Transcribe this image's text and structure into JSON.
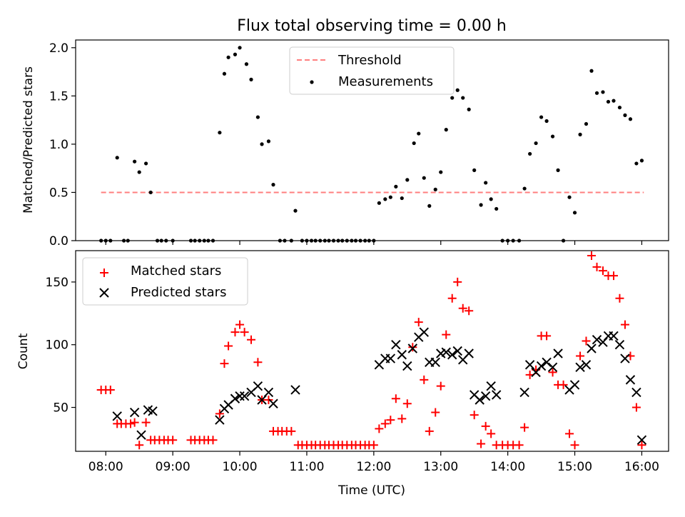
{
  "figure": {
    "title": "Flux total observing time = 0.00 h",
    "xlabel": "Time (UTC)",
    "x_ticks": [
      "08:00",
      "09:00",
      "10:00",
      "11:00",
      "12:00",
      "13:00",
      "14:00",
      "15:00",
      "16:00"
    ],
    "x_tick_hours": [
      8,
      9,
      10,
      11,
      12,
      13,
      14,
      15,
      16
    ],
    "xlim_hours": [
      7.55,
      16.4
    ]
  },
  "chart_data": [
    {
      "type": "scatter",
      "panel": "top",
      "ylabel": "Matched/Predicted stars",
      "ylim": [
        0,
        2.08
      ],
      "y_ticks": [
        0.0,
        0.5,
        1.0,
        1.5,
        2.0
      ],
      "y_tick_labels": [
        "0.0",
        "0.5",
        "1.0",
        "1.5",
        "2.0"
      ],
      "legend_position": "top-center",
      "threshold": {
        "name": "Threshold",
        "value": 0.5,
        "x_range": [
          7.93,
          16.03
        ],
        "color": "#ff7f7f"
      },
      "measurements": {
        "name": "Measurements",
        "color": "#000000",
        "x": [
          7.93,
          8.0,
          8.07,
          8.17,
          8.27,
          8.33,
          8.43,
          8.5,
          8.6,
          8.67,
          8.77,
          8.83,
          8.9,
          9.0,
          9.27,
          9.33,
          9.4,
          9.47,
          9.53,
          9.6,
          9.7,
          9.77,
          9.83,
          9.93,
          10.0,
          10.1,
          10.17,
          10.27,
          10.33,
          10.43,
          10.5,
          10.6,
          10.67,
          10.77,
          10.83,
          10.93,
          11.0,
          11.07,
          11.13,
          11.2,
          11.27,
          11.33,
          11.4,
          11.47,
          11.53,
          11.6,
          11.67,
          11.73,
          11.8,
          11.87,
          11.93,
          12.0,
          12.08,
          12.17,
          12.25,
          12.33,
          12.42,
          12.5,
          12.6,
          12.67,
          12.75,
          12.83,
          12.92,
          13.0,
          13.08,
          13.17,
          13.25,
          13.33,
          13.42,
          13.5,
          13.6,
          13.67,
          13.75,
          13.83,
          13.92,
          14.0,
          14.08,
          14.17,
          14.25,
          14.33,
          14.42,
          14.5,
          14.58,
          14.67,
          14.75,
          14.83,
          14.92,
          15.0,
          15.08,
          15.17,
          15.25,
          15.33,
          15.42,
          15.5,
          15.58,
          15.67,
          15.75,
          15.83,
          15.92,
          16.0
        ],
        "y": [
          0.0,
          0.0,
          0.0,
          0.86,
          0.0,
          0.0,
          0.82,
          0.71,
          0.8,
          0.5,
          0.0,
          0.0,
          0.0,
          0.0,
          0.0,
          0.0,
          0.0,
          0.0,
          0.0,
          0.0,
          1.12,
          1.73,
          1.9,
          1.93,
          2.0,
          1.83,
          1.67,
          1.28,
          1.0,
          1.03,
          0.58,
          0.0,
          0.0,
          0.0,
          0.31,
          0.0,
          0.0,
          0.0,
          0.0,
          0.0,
          0.0,
          0.0,
          0.0,
          0.0,
          0.0,
          0.0,
          0.0,
          0.0,
          0.0,
          0.0,
          0.0,
          0.0,
          0.39,
          0.43,
          0.45,
          0.56,
          0.44,
          0.63,
          1.01,
          1.11,
          0.65,
          0.36,
          0.53,
          0.71,
          1.15,
          1.48,
          1.56,
          1.48,
          1.36,
          0.73,
          0.37,
          0.6,
          0.43,
          0.33,
          0.0,
          0.0,
          0.0,
          0.0,
          0.54,
          0.9,
          1.01,
          1.28,
          1.24,
          1.08,
          0.73,
          0.0,
          0.45,
          0.29,
          1.1,
          1.21,
          1.76,
          1.53,
          1.54,
          1.44,
          1.45,
          1.38,
          1.3,
          1.26,
          0.8,
          0.83
        ]
      }
    },
    {
      "type": "scatter",
      "panel": "bottom",
      "ylabel": "Count",
      "ylim": [
        15,
        175
      ],
      "y_ticks": [
        50,
        100,
        150
      ],
      "y_tick_labels": [
        "50",
        "100",
        "150"
      ],
      "legend_position": "top-left",
      "matched": {
        "name": "Matched stars",
        "marker": "+",
        "color": "#ff0000",
        "x": [
          7.93,
          8.0,
          8.07,
          8.17,
          8.23,
          8.3,
          8.37,
          8.43,
          8.5,
          8.6,
          8.67,
          8.73,
          8.8,
          8.87,
          8.93,
          9.0,
          9.27,
          9.33,
          9.4,
          9.47,
          9.53,
          9.6,
          9.7,
          9.77,
          9.83,
          9.93,
          10.0,
          10.07,
          10.17,
          10.27,
          10.33,
          10.43,
          10.5,
          10.57,
          10.63,
          10.7,
          10.77,
          10.87,
          10.93,
          11.0,
          11.07,
          11.13,
          11.2,
          11.27,
          11.33,
          11.4,
          11.47,
          11.53,
          11.6,
          11.67,
          11.73,
          11.8,
          11.87,
          11.93,
          12.0,
          12.08,
          12.17,
          12.25,
          12.33,
          12.42,
          12.5,
          12.58,
          12.67,
          12.75,
          12.83,
          12.92,
          13.0,
          13.08,
          13.17,
          13.25,
          13.33,
          13.42,
          13.5,
          13.6,
          13.67,
          13.75,
          13.83,
          13.92,
          14.0,
          14.08,
          14.17,
          14.25,
          14.33,
          14.42,
          14.5,
          14.58,
          14.67,
          14.75,
          14.83,
          14.92,
          15.0,
          15.08,
          15.17,
          15.25,
          15.33,
          15.42,
          15.5,
          15.58,
          15.67,
          15.75,
          15.83,
          15.92,
          16.0
        ],
        "y": [
          64,
          64,
          64,
          37,
          37,
          37,
          37,
          38,
          20,
          38,
          24,
          24,
          24,
          24,
          24,
          24,
          24,
          24,
          24,
          24,
          24,
          24,
          45,
          85,
          99,
          110,
          116,
          110,
          104,
          86,
          56,
          56,
          31,
          31,
          31,
          31,
          31,
          20,
          20,
          20,
          20,
          20,
          20,
          20,
          20,
          20,
          20,
          20,
          20,
          20,
          20,
          20,
          20,
          20,
          20,
          33,
          37,
          40,
          57,
          41,
          53,
          98,
          118,
          72,
          31,
          46,
          67,
          108,
          137,
          150,
          129,
          127,
          44,
          21,
          35,
          29,
          20,
          20,
          20,
          20,
          20,
          34,
          76,
          80,
          107,
          107,
          78,
          68,
          68,
          29,
          20,
          91,
          103,
          171,
          162,
          159,
          155,
          155,
          137,
          116,
          91,
          50,
          20
        ]
      },
      "predicted": {
        "name": "Predicted stars",
        "marker": "x",
        "color": "#000000",
        "x": [
          8.17,
          8.43,
          8.53,
          8.63,
          8.7,
          9.7,
          9.77,
          9.83,
          9.93,
          10.0,
          10.07,
          10.17,
          10.27,
          10.33,
          10.43,
          10.5,
          10.83,
          12.08,
          12.17,
          12.25,
          12.33,
          12.42,
          12.5,
          12.58,
          12.67,
          12.75,
          12.83,
          12.92,
          13.0,
          13.08,
          13.17,
          13.25,
          13.33,
          13.42,
          13.5,
          13.58,
          13.67,
          13.75,
          13.83,
          14.25,
          14.33,
          14.42,
          14.5,
          14.58,
          14.67,
          14.75,
          14.92,
          15.0,
          15.08,
          15.17,
          15.25,
          15.33,
          15.42,
          15.5,
          15.58,
          15.67,
          15.75,
          15.83,
          15.92,
          16.0
        ],
        "y": [
          43,
          46,
          28,
          48,
          47,
          40,
          49,
          52,
          57,
          59,
          59,
          62,
          67,
          56,
          62,
          53,
          64,
          84,
          89,
          89,
          100,
          92,
          83,
          97,
          106,
          110,
          86,
          86,
          93,
          94,
          92,
          95,
          88,
          93,
          60,
          56,
          59,
          67,
          60,
          62,
          84,
          78,
          83,
          86,
          82,
          93,
          64,
          68,
          82,
          84,
          97,
          104,
          102,
          107,
          107,
          100,
          89,
          72,
          62,
          24
        ]
      }
    }
  ]
}
